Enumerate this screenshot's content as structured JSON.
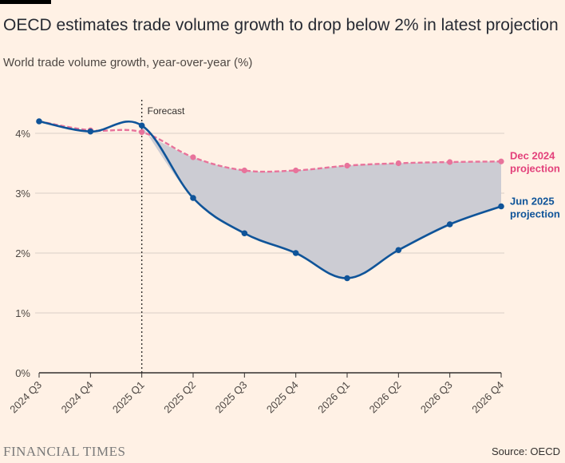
{
  "header": {
    "title": "OECD estimates trade volume growth to drop below 2% in latest projection",
    "subtitle": "World trade volume growth, year-over-year (%)"
  },
  "footer": {
    "logo_text": "FINANCIAL TIMES",
    "source": "Source: OECD"
  },
  "colors": {
    "background": "#fff1e5",
    "dec_2024": "#e8739b",
    "jun_2025": "#0f5499",
    "shaded_area": "#ccccd3",
    "gridline": "#d9cfc6"
  },
  "chart_data": {
    "type": "line",
    "title": "OECD estimates trade volume growth to drop below 2% in latest projection",
    "subtitle": "World trade volume growth, year-over-year (%)",
    "categories": [
      "2024 Q3",
      "2024 Q4",
      "2025 Q1",
      "2025 Q2",
      "2025 Q3",
      "2025 Q4",
      "2026 Q1",
      "2026 Q2",
      "2026 Q3",
      "2026 Q4"
    ],
    "y_ticks": [
      "0%",
      "1%",
      "2%",
      "3%",
      "4%"
    ],
    "ylim": [
      0,
      4.5
    ],
    "annotation": "Forecast",
    "annotation_category": "2025 Q1",
    "grid": true,
    "series": [
      {
        "name": "Dec 2024 projection",
        "label_line1": "Dec 2024",
        "label_line2": "projection",
        "style": "dashed",
        "color": "#e8739b",
        "values": [
          4.2,
          4.05,
          4.02,
          3.6,
          3.38,
          3.38,
          3.46,
          3.5,
          3.52,
          3.53
        ]
      },
      {
        "name": "Jun 2025 projection",
        "label_line1": "Jun 2025",
        "label_line2": "projection",
        "style": "solid",
        "color": "#0f5499",
        "values": [
          4.2,
          4.03,
          4.13,
          2.92,
          2.33,
          2.0,
          1.58,
          2.05,
          2.48,
          2.78
        ]
      }
    ]
  }
}
